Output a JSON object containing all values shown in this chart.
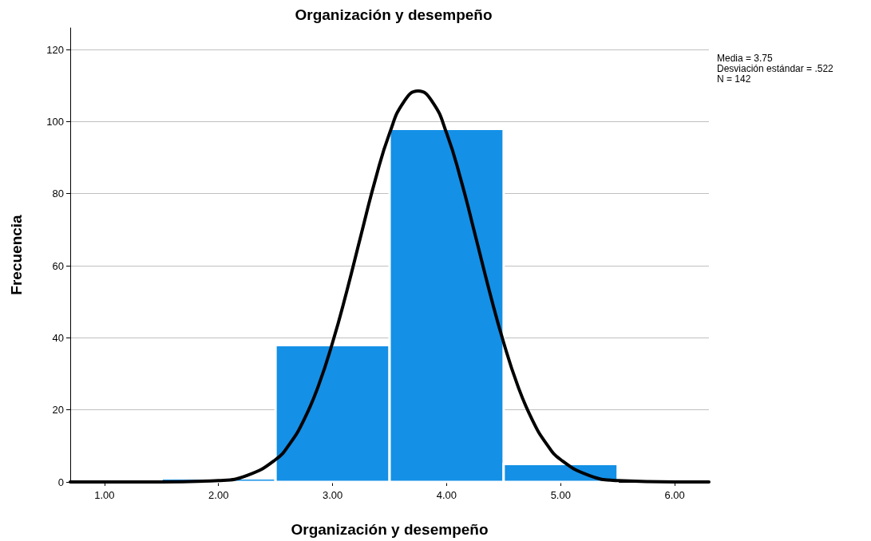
{
  "chart_data": {
    "type": "histogram",
    "title": "Organización y desempeño",
    "xlabel": "Organización y desempeño",
    "ylabel": "Frecuencia",
    "annotations": [
      "Media = 3.75",
      "Desviación estándar = .522",
      "N = 142"
    ],
    "bins": [
      1.5,
      2.5,
      3.5,
      4.5,
      5.5
    ],
    "values": [
      1,
      38,
      98,
      5
    ],
    "color": "#1490e6",
    "series": [
      {
        "type": "line",
        "color": "#000000",
        "marker": "none",
        "line_style": "solid",
        "x": [
          0.7,
          1.5,
          2.0,
          2.25,
          2.5,
          2.625,
          2.75,
          2.875,
          3.0,
          3.125,
          3.25,
          3.375,
          3.5,
          3.625,
          3.75,
          3.875,
          4.0,
          4.125,
          4.25,
          4.375,
          4.5,
          4.625,
          4.75,
          4.875,
          5.0,
          5.25,
          5.5,
          6.0,
          6.3
        ],
        "values": [
          0,
          0,
          0.4,
          1.8,
          6.2,
          10.6,
          17.3,
          26.6,
          38.7,
          53.0,
          68.6,
          83.9,
          96.8,
          105.5,
          108.5,
          105.5,
          96.8,
          83.9,
          68.6,
          53.0,
          38.7,
          26.6,
          17.3,
          10.6,
          6.2,
          1.8,
          0.4,
          0,
          0
        ]
      }
    ],
    "xlim": [
      0.7,
      6.3
    ],
    "xticks": [
      {
        "value": 1,
        "label": "1.00"
      },
      {
        "value": 2,
        "label": "2.00"
      },
      {
        "value": 3,
        "label": "3.00"
      },
      {
        "value": 4,
        "label": "4.00"
      },
      {
        "value": 5,
        "label": "5.00"
      },
      {
        "value": 6,
        "label": "6.00"
      }
    ],
    "ylim": [
      0,
      126
    ],
    "yticks": [
      0,
      20,
      40,
      60,
      80,
      100,
      120
    ],
    "grid": "y"
  }
}
